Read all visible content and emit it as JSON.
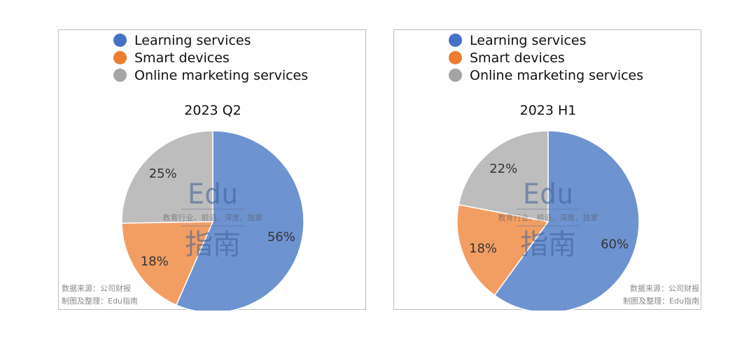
{
  "legend": [
    {
      "label": "Learning services",
      "color": "#4472c4"
    },
    {
      "label": "Smart devices",
      "color": "#ed7d31"
    },
    {
      "label": "Online marketing services",
      "color": "#a5a5a5"
    }
  ],
  "slice_colors": [
    "#6e93d1",
    "#f29e63",
    "#bdbdbd"
  ],
  "watermark": {
    "latin": "Edu",
    "tagline": "教育行业、前沿、深度、独家",
    "cjk": "指南"
  },
  "source": {
    "line1": "数据来源：公司财报",
    "line2": "制图及整理：Edu指南"
  },
  "chart_data": [
    {
      "type": "pie",
      "title": "2023 Q2",
      "categories": [
        "Learning services",
        "Smart devices",
        "Online marketing services"
      ],
      "values": [
        56,
        18,
        25
      ],
      "labels": [
        "56%",
        "18%",
        "25%"
      ]
    },
    {
      "type": "pie",
      "title": "2023 H1",
      "categories": [
        "Learning services",
        "Smart devices",
        "Online marketing services"
      ],
      "values": [
        60,
        18,
        22
      ],
      "labels": [
        "60%",
        "18%",
        "22%"
      ]
    }
  ]
}
